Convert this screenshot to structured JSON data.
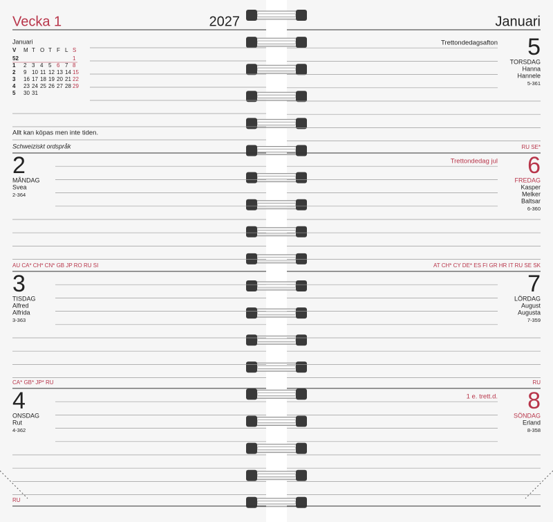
{
  "left_page": {
    "week": "Vecka 1",
    "year": "2027",
    "mini_calendar": {
      "month": "Januari",
      "headers": [
        "V",
        "M",
        "T",
        "O",
        "T",
        "F",
        "L",
        "S"
      ],
      "rows": [
        [
          "52",
          null,
          null,
          null,
          null,
          null,
          null,
          "1"
        ],
        [
          "1",
          "2",
          "3",
          "4",
          "5",
          "6",
          "7",
          "8"
        ],
        [
          "2",
          "9",
          "10",
          "11",
          "12",
          "13",
          "14",
          "15"
        ],
        [
          "3",
          "16",
          "17",
          "18",
          "19",
          "20",
          "21",
          "22"
        ],
        [
          "4",
          "23",
          "24",
          "25",
          "26",
          "27",
          "28",
          "29"
        ],
        [
          "5",
          "30",
          "31",
          null,
          null,
          null,
          null,
          null
        ]
      ]
    },
    "quote": {
      "text": "Allt kan köpas men inte tiden.",
      "source": "Schweiziskt ordspråk"
    },
    "days": [
      {
        "number": "2",
        "weekday": "MÅNDAG",
        "names": [
          "Svea"
        ],
        "day_code": "2-364",
        "color": "#222222"
      },
      {
        "flags": "AU CA* CH* CN* GB JP RO RU SI",
        "number": "3",
        "weekday": "TISDAG",
        "names": [
          "Alfred",
          "Alfrida"
        ],
        "day_code": "3-363",
        "color": "#222222"
      },
      {
        "flags": "CA* GB* JP* RU",
        "number": "4",
        "weekday": "ONSDAG",
        "names": [
          "Rut"
        ],
        "day_code": "4-362",
        "color": "#222222"
      }
    ],
    "footer_flags": "RU"
  },
  "right_page": {
    "month": "Januari",
    "days": [
      {
        "holiday": "Trettondedagsafton",
        "number": "5",
        "weekday": "TORSDAG",
        "names": [
          "Hanna",
          "Hannele"
        ],
        "day_code": "5-361",
        "color": "#222222"
      },
      {
        "flags": "RU SE*",
        "holiday": "Trettondedag jul",
        "number": "6",
        "weekday": "FREDAG",
        "names": [
          "Kasper",
          "Melker",
          "Baltsar"
        ],
        "day_code": "6-360",
        "color": "#b8354a"
      },
      {
        "flags": "AT CH* CY DE* ES FI GR HR IT RU SE SK",
        "number": "7",
        "weekday": "LÖRDAG",
        "names": [
          "August",
          "Augusta"
        ],
        "day_code": "7-359",
        "color": "#222222"
      },
      {
        "flags": "RU",
        "holiday": "1 e. trett.d.",
        "number": "8",
        "weekday": "SÖNDAG",
        "names": [
          "Erland"
        ],
        "day_code": "8-358",
        "color": "#b8354a"
      }
    ]
  }
}
